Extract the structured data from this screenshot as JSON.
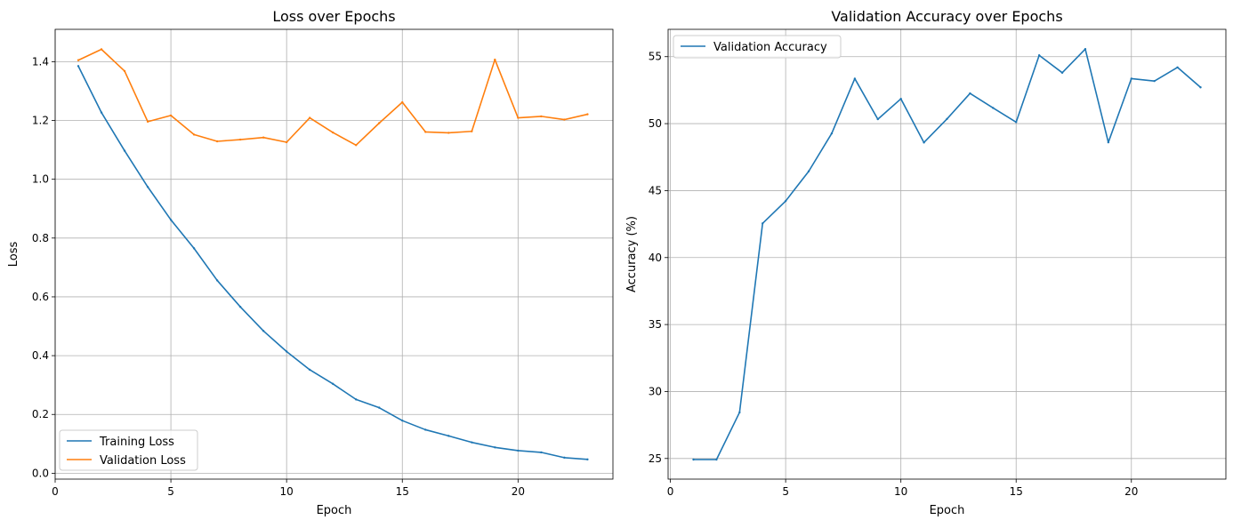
{
  "chart_data": [
    {
      "type": "line",
      "title": "Loss over Epochs",
      "xlabel": "Epoch",
      "ylabel": "Loss",
      "xlim": [
        0,
        24.1
      ],
      "ylim": [
        -0.02,
        1.51
      ],
      "xticks": [
        0,
        5,
        10,
        15,
        20
      ],
      "yticks": [
        0.0,
        0.2,
        0.4,
        0.6,
        0.8,
        1.0,
        1.2,
        1.4
      ],
      "ytick_decimals": 1,
      "grid": true,
      "legend_position": "lower-left",
      "x": [
        1,
        2,
        3,
        4,
        5,
        6,
        7,
        8,
        9,
        10,
        11,
        12,
        13,
        14,
        15,
        16,
        17,
        18,
        19,
        20,
        21,
        22,
        23
      ],
      "series": [
        {
          "name": "Training Loss",
          "color": "#1f77b4",
          "values": [
            1.385,
            1.227,
            1.097,
            0.974,
            0.862,
            0.765,
            0.656,
            0.566,
            0.484,
            0.414,
            0.352,
            0.304,
            0.251,
            0.223,
            0.179,
            0.148,
            0.127,
            0.105,
            0.088,
            0.077,
            0.071,
            0.053,
            0.047
          ]
        },
        {
          "name": "Validation Loss",
          "color": "#ff7f0e",
          "values": [
            1.405,
            1.442,
            1.368,
            1.196,
            1.217,
            1.152,
            1.129,
            1.135,
            1.142,
            1.126,
            1.209,
            1.159,
            1.116,
            1.191,
            1.262,
            1.161,
            1.158,
            1.163,
            1.407,
            1.209,
            1.214,
            1.203,
            1.221
          ]
        }
      ]
    },
    {
      "type": "line",
      "title": "Validation Accuracy over Epochs",
      "xlabel": "Epoch",
      "ylabel": "Accuracy (%)",
      "xlim": [
        -0.1,
        24.1
      ],
      "ylim": [
        23.46,
        57.04
      ],
      "xticks": [
        0,
        5,
        10,
        15,
        20
      ],
      "yticks": [
        25,
        30,
        35,
        40,
        45,
        50,
        55
      ],
      "ytick_decimals": 0,
      "grid": true,
      "legend_position": "upper-left",
      "x": [
        1,
        2,
        3,
        4,
        5,
        6,
        7,
        8,
        9,
        10,
        11,
        12,
        13,
        14,
        15,
        16,
        17,
        18,
        19,
        20,
        21,
        22,
        23
      ],
      "series": [
        {
          "name": "Validation Accuracy",
          "color": "#1f77b4",
          "values": [
            24.92,
            24.92,
            28.44,
            42.55,
            44.22,
            46.44,
            49.27,
            53.36,
            50.33,
            51.85,
            48.59,
            50.35,
            52.26,
            51.17,
            50.11,
            55.1,
            53.8,
            55.57,
            48.6,
            53.36,
            53.18,
            54.2,
            52.71
          ]
        }
      ]
    }
  ]
}
